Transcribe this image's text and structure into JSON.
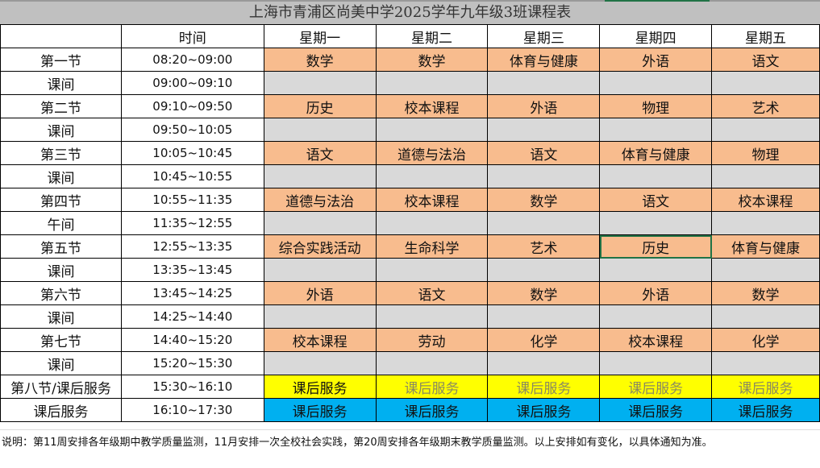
{
  "title": "上海市青浦区尚美中学2025学年九年级3班课程表",
  "header": [
    "",
    "时间",
    "星期一",
    "星期二",
    "星期三",
    "星期四",
    "星期五"
  ],
  "rows": [
    {
      "label": "第一节",
      "time": "08:20~09:00",
      "type": "sub",
      "cells": [
        "数学",
        "数学",
        "体育与健康",
        "外语",
        "语文"
      ]
    },
    {
      "label": "课间",
      "time": "09:00~09:10",
      "type": "brk",
      "cells": [
        "",
        "",
        "",
        "",
        ""
      ]
    },
    {
      "label": "第二节",
      "time": "09:10~09:50",
      "type": "sub",
      "cells": [
        "历史",
        "校本课程",
        "外语",
        "物理",
        "艺术"
      ]
    },
    {
      "label": "课间",
      "time": "09:50~10:05",
      "type": "brk",
      "cells": [
        "",
        "",
        "",
        "",
        ""
      ]
    },
    {
      "label": "第三节",
      "time": "10:05~10:45",
      "type": "sub",
      "cells": [
        "语文",
        "道德与法治",
        "语文",
        "体育与健康",
        "物理"
      ]
    },
    {
      "label": "课间",
      "time": "10:45~10:55",
      "type": "brk",
      "cells": [
        "",
        "",
        "",
        "",
        ""
      ]
    },
    {
      "label": "第四节",
      "time": "10:55~11:35",
      "type": "sub",
      "cells": [
        "道德与法治",
        "校本课程",
        "数学",
        "语文",
        "校本课程"
      ]
    },
    {
      "label": "午间",
      "time": "11:35~12:55",
      "type": "brk",
      "cells": [
        "",
        "",
        "",
        "",
        ""
      ]
    },
    {
      "label": "第五节",
      "time": "12:55~13:35",
      "type": "sub",
      "cells": [
        "综合实践活动",
        "生命科学",
        "艺术",
        "历史",
        "体育与健康"
      ]
    },
    {
      "label": "课间",
      "time": "13:35~13:45",
      "type": "brk",
      "cells": [
        "",
        "",
        "",
        "",
        ""
      ]
    },
    {
      "label": "第六节",
      "time": "13:45~14:25",
      "type": "sub",
      "cells": [
        "外语",
        "语文",
        "数学",
        "外语",
        "数学"
      ]
    },
    {
      "label": "课间",
      "time": "14:25~14:40",
      "type": "brk",
      "cells": [
        "",
        "",
        "",
        "",
        ""
      ]
    },
    {
      "label": "第七节",
      "time": "14:40~15:20",
      "type": "sub",
      "cells": [
        "校本课程",
        "劳动",
        "化学",
        "校本课程",
        "化学"
      ]
    },
    {
      "label": "课间",
      "time": "15:20~15:30",
      "type": "brk",
      "cells": [
        "",
        "",
        "",
        "",
        ""
      ]
    },
    {
      "label": "第八节/课后服务",
      "time": "15:30~16:10",
      "type": "y",
      "cells": [
        "课后服务",
        "课后服务",
        "课后服务",
        "课后服务",
        "课后服务"
      ]
    },
    {
      "label": "课后服务",
      "time": "16:10~17:30",
      "type": "b",
      "cells": [
        "课后服务",
        "课后服务",
        "课后服务",
        "课后服务",
        "课后服务"
      ]
    }
  ],
  "note": "说明：第11周安排各年级期中教学质量监测，11月安排一次全校社会实践，第20周安排各年级期末教学质量监测。以上安排如有变化，以具体通知为准。",
  "colors": {
    "subject": "#f8bc8e",
    "break": "#d9d9d9",
    "after_school_1": "#ffff00",
    "after_school_2": "#00b0f0",
    "selection": "#217346"
  }
}
